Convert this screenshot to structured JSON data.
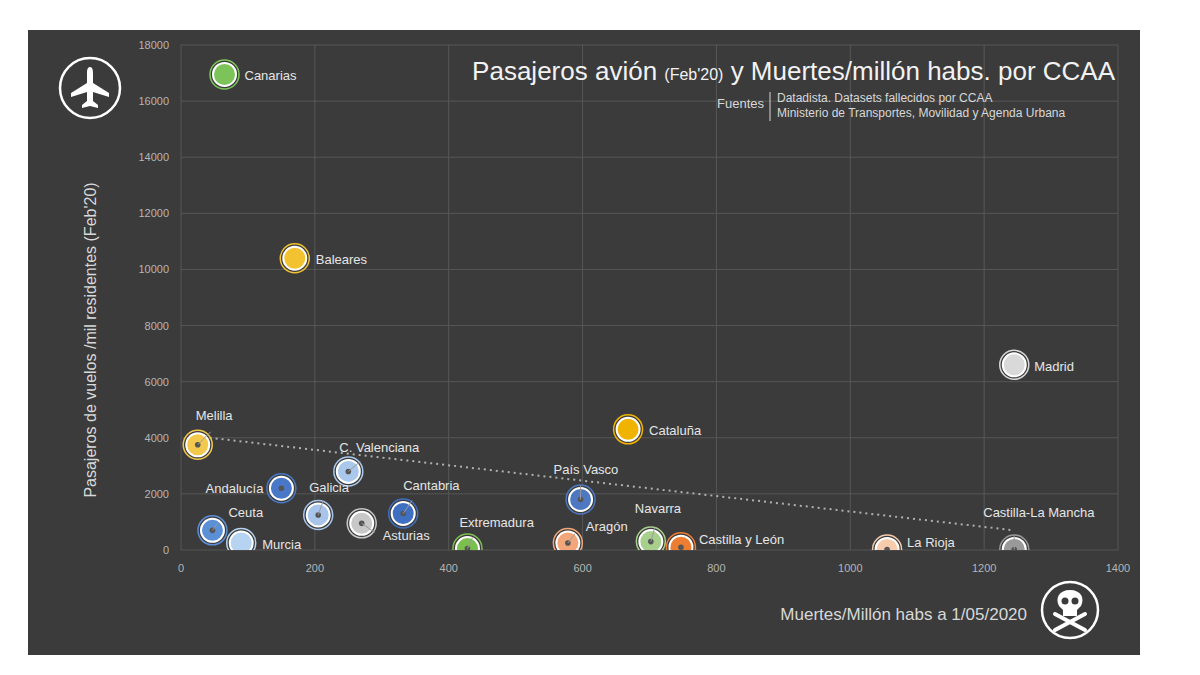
{
  "chart_data": {
    "type": "scatter",
    "title": "Pasajeros avión (Feb'20) y Muertes/millón habs. por CCAA",
    "sources": {
      "label": "Fuentes",
      "items": [
        "Datadista. Datasets fallecidos por CCAA",
        "Ministerio de Transportes, Movilidad y Agenda Urbana"
      ]
    },
    "x_label": "Muertes/Millón habs a 1/05/2020",
    "y_label": "Pasajeros de vuelos /mil residentes (Feb'20)",
    "labels": [
      "Canarias",
      "Baleares",
      "Madrid",
      "Cataluña",
      "Melilla",
      "C. Valenciana",
      "Andalucía",
      "Galicia",
      "Cantabria",
      "Asturias",
      "País Vasco",
      "Ceuta",
      "Murcia",
      "Extremadura",
      "Aragón",
      "Navarra",
      "Castilla y León",
      "La Rioja",
      "Castilla-La Mancha"
    ],
    "x": [
      65,
      170,
      1245,
      668,
      25,
      250,
      150,
      205,
      332,
      270,
      597,
      47,
      90,
      428,
      578,
      702,
      747,
      1055,
      1245
    ],
    "values": [
      16950,
      10400,
      6600,
      4300,
      3750,
      2800,
      2200,
      1250,
      1300,
      950,
      1800,
      700,
      250,
      50,
      250,
      300,
      100,
      20,
      20
    ],
    "colors": [
      "#7cc45a",
      "#f2c230",
      "#d9d9d9",
      "#f0b400",
      "#f2c94c",
      "#a9c8ec",
      "#4a78c8",
      "#a9c4ea",
      "#3f6fc0",
      "#c8c8c8",
      "#4f78c2",
      "#5b8fd6",
      "#b6d3f2",
      "#7bbf4e",
      "#f2a679",
      "#a8d08d",
      "#ed7d31",
      "#f8cbad",
      "#999999"
    ],
    "marker": "circle",
    "trendline": {
      "x": [
        25,
        1245
      ],
      "values": [
        4050,
        700
      ],
      "line_style": "dotted"
    },
    "xlim": [
      0,
      1400
    ],
    "xticks": [
      0,
      200,
      400,
      600,
      800,
      1000,
      1200,
      1400
    ],
    "ylim": [
      0,
      18000
    ],
    "yticks": [
      0,
      2000,
      4000,
      6000,
      8000,
      10000,
      12000,
      14000,
      16000,
      18000
    ],
    "grid": true
  }
}
